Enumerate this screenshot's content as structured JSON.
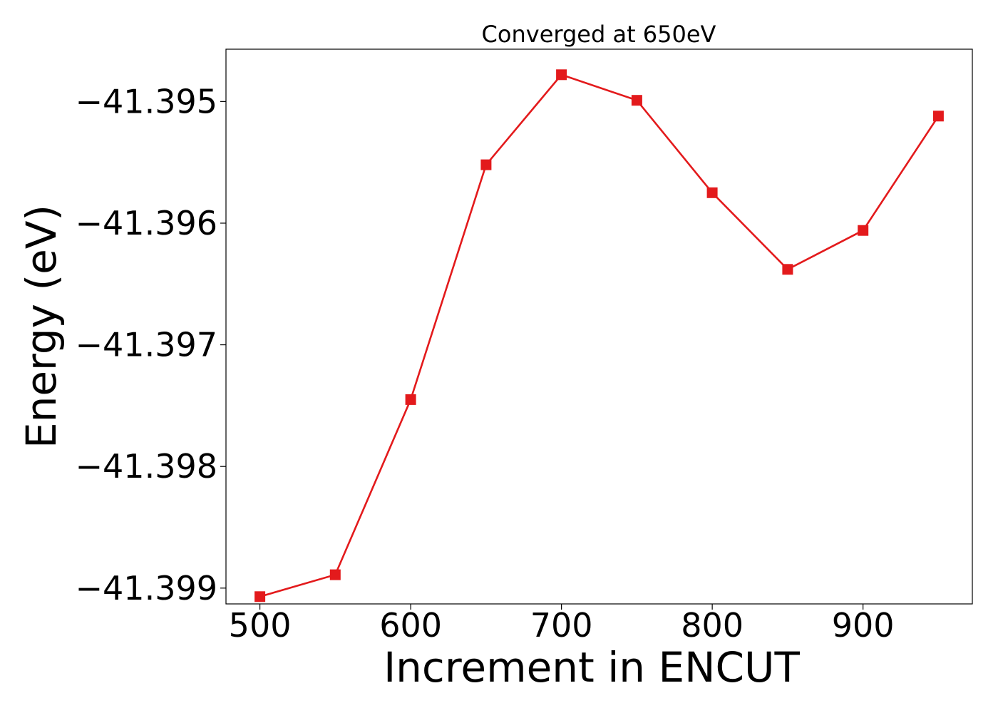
{
  "chart_data": {
    "type": "line",
    "title": "Converged at 650eV",
    "xlabel": "Increment in ENCUT",
    "ylabel": "Energy (eV)",
    "x": [
      500,
      550,
      600,
      650,
      700,
      750,
      800,
      850,
      900,
      950
    ],
    "xticks": [
      500,
      600,
      700,
      800,
      900
    ],
    "xtick_labels": [
      "500",
      "600",
      "700",
      "800",
      "900"
    ],
    "yticks": [
      -41.395,
      -41.396,
      -41.397,
      -41.398,
      -41.399
    ],
    "ytick_labels": [
      "−41.395",
      "−41.396",
      "−41.397",
      "−41.398",
      "−41.399"
    ],
    "xlim": [
      477.5,
      972.5
    ],
    "ylim": [
      -41.39913,
      -41.39457
    ],
    "series": [
      {
        "values": [
          -41.39907,
          -41.39889,
          -41.39745,
          -41.39552,
          -41.39478,
          -41.39499,
          -41.39575,
          -41.39638,
          -41.39606,
          -41.39512
        ],
        "color": "#e31a1c",
        "marker": "square"
      }
    ],
    "grid": false,
    "legend": "none"
  }
}
